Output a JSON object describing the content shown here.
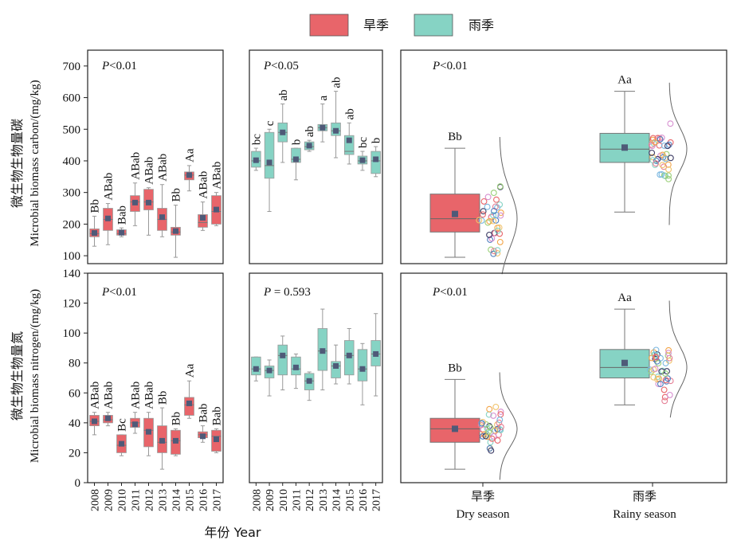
{
  "legend": [
    {
      "label": "旱季",
      "color": "#e8656a"
    },
    {
      "label": "雨季",
      "color": "#86d3c4"
    }
  ],
  "axes": {
    "ylabel_top_cn": "微生物生物量碳",
    "ylabel_top_en": "Microbial biomass carbon/(mg/kg)",
    "ylabel_bottom_cn": "微生物生物量氮",
    "ylabel_bottom_en": "Microbial biomass nitrogen/(mg/kg)",
    "xlabel_year": "年份 Year",
    "season_dry_cn": "旱季",
    "season_dry_en": "Dry season",
    "season_rainy_cn": "雨季",
    "season_rainy_en": "Rainy season"
  },
  "chart_data": [
    {
      "id": "mbc-dry-years",
      "type": "box",
      "row": "top",
      "col": 0,
      "ylim": [
        75,
        750
      ],
      "yticks": [
        100,
        200,
        300,
        400,
        500,
        600,
        700
      ],
      "pvalue": "P<0.01",
      "color": "#e8656a",
      "categories": [
        "2008",
        "2009",
        "2010",
        "2011",
        "2012",
        "2013",
        "2014",
        "2015",
        "2016",
        "2017"
      ],
      "boxes": [
        {
          "q1": 160,
          "median": 170,
          "q3": 185,
          "min": 130,
          "max": 225,
          "mean": 172,
          "label": "Bb"
        },
        {
          "q1": 180,
          "median": 215,
          "q3": 250,
          "min": 135,
          "max": 265,
          "mean": 218,
          "label": "ABab"
        },
        {
          "q1": 165,
          "median": 170,
          "q3": 182,
          "min": 160,
          "max": 188,
          "mean": 173,
          "label": "Bab"
        },
        {
          "q1": 240,
          "median": 270,
          "q3": 290,
          "min": 195,
          "max": 330,
          "mean": 268,
          "label": "ABab"
        },
        {
          "q1": 245,
          "median": 270,
          "q3": 310,
          "min": 165,
          "max": 315,
          "mean": 268,
          "label": "ABab"
        },
        {
          "q1": 180,
          "median": 215,
          "q3": 250,
          "min": 160,
          "max": 325,
          "mean": 222,
          "label": "ABab"
        },
        {
          "q1": 165,
          "median": 175,
          "q3": 190,
          "min": 95,
          "max": 260,
          "mean": 178,
          "label": "Bb"
        },
        {
          "q1": 340,
          "median": 355,
          "q3": 365,
          "min": 305,
          "max": 385,
          "mean": 355,
          "label": "Aa"
        },
        {
          "q1": 190,
          "median": 205,
          "q3": 230,
          "min": 180,
          "max": 270,
          "mean": 220,
          "label": "ABab"
        },
        {
          "q1": 200,
          "median": 240,
          "q3": 290,
          "min": 195,
          "max": 300,
          "mean": 246,
          "label": "ABab"
        }
      ]
    },
    {
      "id": "mbc-rainy-years",
      "type": "box",
      "row": "top",
      "col": 1,
      "ylim": [
        75,
        750
      ],
      "pvalue": "P<0.05",
      "color": "#86d3c4",
      "categories": [
        "2008",
        "2009",
        "2010",
        "2011",
        "2012",
        "2013",
        "2014",
        "2015",
        "2016",
        "2017"
      ],
      "boxes": [
        {
          "q1": 380,
          "median": 400,
          "q3": 430,
          "min": 370,
          "max": 440,
          "mean": 402,
          "label": "bc"
        },
        {
          "q1": 345,
          "median": 385,
          "q3": 490,
          "min": 240,
          "max": 500,
          "mean": 395,
          "label": "c"
        },
        {
          "q1": 460,
          "median": 490,
          "q3": 520,
          "min": 395,
          "max": 580,
          "mean": 490,
          "label": "ab"
        },
        {
          "q1": 395,
          "median": 405,
          "q3": 440,
          "min": 340,
          "max": 440,
          "mean": 405,
          "label": "b"
        },
        {
          "q1": 435,
          "median": 445,
          "q3": 460,
          "min": 430,
          "max": 465,
          "mean": 448,
          "label": "ab"
        },
        {
          "q1": 495,
          "median": 505,
          "q3": 515,
          "min": 460,
          "max": 580,
          "mean": 505,
          "label": "a"
        },
        {
          "q1": 480,
          "median": 495,
          "q3": 520,
          "min": 410,
          "max": 620,
          "mean": 495,
          "label": "ab"
        },
        {
          "q1": 420,
          "median": 430,
          "q3": 480,
          "min": 390,
          "max": 520,
          "mean": 465,
          "label": "ab"
        },
        {
          "q1": 390,
          "median": 400,
          "q3": 415,
          "min": 370,
          "max": 430,
          "mean": 402,
          "label": "bc"
        },
        {
          "q1": 360,
          "median": 400,
          "q3": 430,
          "min": 350,
          "max": 445,
          "mean": 405,
          "label": "b"
        }
      ]
    },
    {
      "id": "mbc-season",
      "type": "box_violin",
      "row": "top",
      "col": 2,
      "ylim": [
        75,
        750
      ],
      "pvalue": "P<0.01",
      "categories": [
        "旱季",
        "雨季"
      ],
      "boxes": [
        {
          "q1": 175,
          "median": 217,
          "q3": 295,
          "min": 95,
          "max": 440,
          "mean": 232,
          "label": "Bb",
          "color": "#e8656a"
        },
        {
          "q1": 395,
          "median": 437,
          "q3": 487,
          "min": 238,
          "max": 620,
          "mean": 442,
          "label": "Aa",
          "color": "#86d3c4"
        }
      ]
    },
    {
      "id": "mbn-dry-years",
      "type": "box",
      "row": "bottom",
      "col": 0,
      "ylim": [
        0,
        140
      ],
      "yticks": [
        0,
        20,
        40,
        60,
        80,
        100,
        120,
        140
      ],
      "pvalue": "P<0.01",
      "color": "#e8656a",
      "categories": [
        "2008",
        "2009",
        "2010",
        "2011",
        "2012",
        "2013",
        "2014",
        "2015",
        "2016",
        "2017"
      ],
      "boxes": [
        {
          "q1": 38,
          "median": 41,
          "q3": 45,
          "min": 32,
          "max": 47,
          "mean": 41,
          "label": "ABab"
        },
        {
          "q1": 40,
          "median": 42,
          "q3": 45,
          "min": 38,
          "max": 47,
          "mean": 43,
          "label": "ABab"
        },
        {
          "q1": 20,
          "median": 25,
          "q3": 32,
          "min": 18,
          "max": 32,
          "mean": 26,
          "label": "Bc"
        },
        {
          "q1": 37,
          "median": 40,
          "q3": 43,
          "min": 33,
          "max": 47,
          "mean": 39,
          "label": "ABab"
        },
        {
          "q1": 24,
          "median": 35,
          "q3": 43,
          "min": 18,
          "max": 47,
          "mean": 34,
          "label": "ABab"
        },
        {
          "q1": 20,
          "median": 27,
          "q3": 38,
          "min": 9,
          "max": 50,
          "mean": 28,
          "label": "Bb"
        },
        {
          "q1": 19,
          "median": 28,
          "q3": 35,
          "min": 18,
          "max": 36,
          "mean": 28,
          "label": "Bb"
        },
        {
          "q1": 45,
          "median": 52,
          "q3": 57,
          "min": 43,
          "max": 68,
          "mean": 53,
          "label": "Aa"
        },
        {
          "q1": 30,
          "median": 32,
          "q3": 34,
          "min": 27,
          "max": 38,
          "mean": 31,
          "label": "Bab"
        },
        {
          "q1": 21,
          "median": 31,
          "q3": 35,
          "min": 20,
          "max": 36,
          "mean": 29,
          "label": "Bab"
        }
      ]
    },
    {
      "id": "mbn-rainy-years",
      "type": "box",
      "row": "bottom",
      "col": 1,
      "ylim": [
        0,
        140
      ],
      "pvalue": "P = 0.593",
      "color": "#86d3c4",
      "categories": [
        "2008",
        "2009",
        "2010",
        "2011",
        "2012",
        "2013",
        "2014",
        "2015",
        "2016",
        "2017"
      ],
      "boxes": [
        {
          "q1": 72,
          "median": 76,
          "q3": 84,
          "min": 68,
          "max": 84,
          "mean": 76
        },
        {
          "q1": 70,
          "median": 75,
          "q3": 78,
          "min": 58,
          "max": 82,
          "mean": 75
        },
        {
          "q1": 72,
          "median": 85,
          "q3": 92,
          "min": 62,
          "max": 98,
          "mean": 85
        },
        {
          "q1": 72,
          "median": 76,
          "q3": 84,
          "min": 63,
          "max": 86,
          "mean": 77
        },
        {
          "q1": 62,
          "median": 68,
          "q3": 73,
          "min": 55,
          "max": 74,
          "mean": 68
        },
        {
          "q1": 75,
          "median": 88,
          "q3": 103,
          "min": 62,
          "max": 116,
          "mean": 88
        },
        {
          "q1": 70,
          "median": 78,
          "q3": 81,
          "min": 66,
          "max": 92,
          "mean": 78
        },
        {
          "q1": 72,
          "median": 85,
          "q3": 95,
          "min": 66,
          "max": 103,
          "mean": 85
        },
        {
          "q1": 68,
          "median": 76,
          "q3": 89,
          "min": 52,
          "max": 93,
          "mean": 76
        },
        {
          "q1": 78,
          "median": 86,
          "q3": 95,
          "min": 58,
          "max": 113,
          "mean": 86
        }
      ]
    },
    {
      "id": "mbn-season",
      "type": "box_violin",
      "row": "bottom",
      "col": 2,
      "ylim": [
        0,
        140
      ],
      "pvalue": "P<0.01",
      "categories": [
        "旱季",
        "雨季"
      ],
      "boxes": [
        {
          "q1": 27,
          "median": 36,
          "q3": 43,
          "min": 9,
          "max": 69,
          "mean": 36,
          "label": "Bb",
          "color": "#e8656a"
        },
        {
          "q1": 70,
          "median": 77,
          "q3": 89,
          "min": 52,
          "max": 116,
          "mean": 80,
          "label": "Aa",
          "color": "#86d3c4"
        }
      ]
    }
  ]
}
